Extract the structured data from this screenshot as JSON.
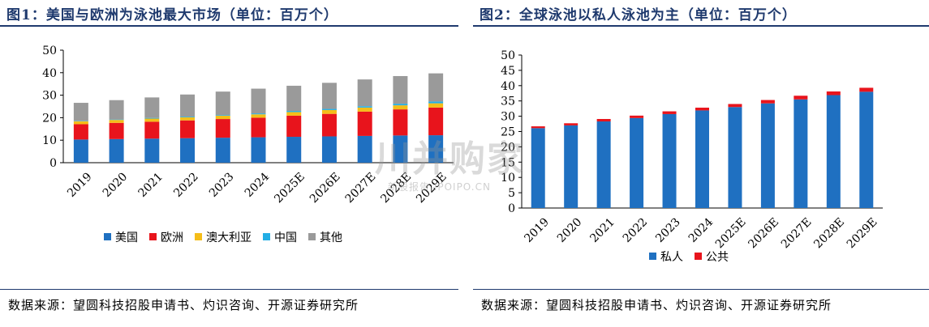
{
  "left": {
    "title": "图1：美国与欧洲为泳池最大市场（单位：百万个）",
    "source": "数据来源：望圆科技招股申请书、灼识咨询、开源证券研究所"
  },
  "right": {
    "title": "图2：全球泳池以私人泳池为主（单位：百万个）",
    "source": "数据来源：望圆科技招股申请书、灼识咨询、开源证券研究所"
  },
  "watermark": {
    "main": "川并购家",
    "sub": "新股报告 IPOIPO.CN"
  },
  "chart_data": [
    {
      "type": "bar",
      "stacked": true,
      "categories": [
        "2019",
        "2020",
        "2021",
        "2022",
        "2023",
        "2024",
        "2025E",
        "2026E",
        "2027E",
        "2028E",
        "2029E"
      ],
      "yticks": [
        0,
        10,
        20,
        30,
        40,
        50
      ],
      "ylim": [
        0,
        50
      ],
      "legend_position": "bottom",
      "series": [
        {
          "name": "美国",
          "color": "#1f70c1",
          "values": [
            10.3,
            10.5,
            10.7,
            10.9,
            11.1,
            11.3,
            11.5,
            11.7,
            11.9,
            12.1,
            12.2
          ]
        },
        {
          "name": "欧洲",
          "color": "#e8141c",
          "values": [
            6.8,
            7.2,
            7.5,
            7.9,
            8.3,
            8.7,
            9.4,
            10.0,
            10.8,
            11.6,
            12.3
          ]
        },
        {
          "name": "澳大利亚",
          "color": "#f5bd18",
          "values": [
            1.3,
            1.3,
            1.4,
            1.4,
            1.5,
            1.5,
            1.6,
            1.7,
            1.8,
            1.8,
            1.9
          ]
        },
        {
          "name": "中国",
          "color": "#23aee5",
          "values": [
            0.2,
            0.2,
            0.3,
            0.3,
            0.3,
            0.4,
            0.5,
            0.5,
            0.6,
            0.7,
            0.8
          ]
        },
        {
          "name": "其他",
          "color": "#9a9a9a",
          "values": [
            8.0,
            8.6,
            9.1,
            9.8,
            10.4,
            11.0,
            11.2,
            11.6,
            11.9,
            12.3,
            12.5
          ]
        }
      ]
    },
    {
      "type": "bar",
      "stacked": true,
      "categories": [
        "2019",
        "2020",
        "2021",
        "2022",
        "2023",
        "2024",
        "2025E",
        "2026E",
        "2027E",
        "2028E",
        "2029E"
      ],
      "yticks": [
        0,
        5,
        10,
        15,
        20,
        25,
        30,
        35,
        40,
        45,
        50
      ],
      "ylim": [
        0,
        50
      ],
      "legend_position": "bottom",
      "series": [
        {
          "name": "私人",
          "color": "#1f70c1",
          "values": [
            26.1,
            27.0,
            28.3,
            29.4,
            30.7,
            31.9,
            33.0,
            34.2,
            35.5,
            36.9,
            38.0
          ]
        },
        {
          "name": "公共",
          "color": "#e8141c",
          "values": [
            0.6,
            0.7,
            0.8,
            0.8,
            0.9,
            0.9,
            1.0,
            1.1,
            1.2,
            1.2,
            1.3
          ]
        }
      ]
    }
  ]
}
